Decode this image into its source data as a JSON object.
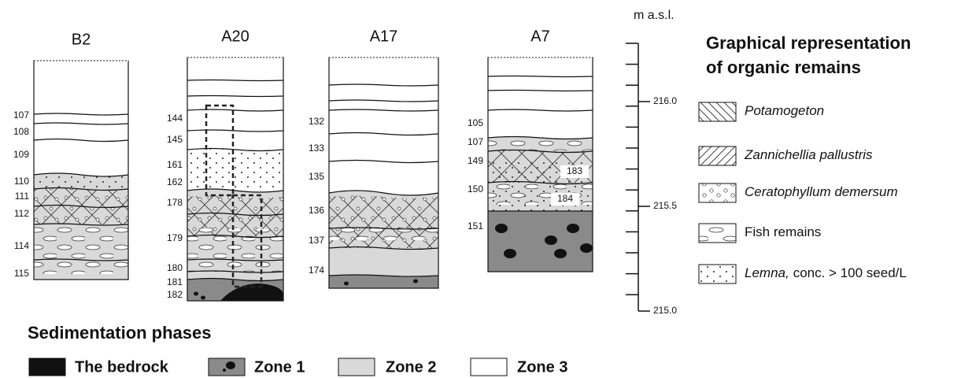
{
  "columns": [
    {
      "title": "B2",
      "labels": [
        "107",
        "108",
        "109",
        "110",
        "111",
        "112",
        "114",
        "115"
      ]
    },
    {
      "title": "A20",
      "labels": [
        "144",
        "145",
        "161",
        "162",
        "178",
        "179",
        "180",
        "181",
        "182"
      ]
    },
    {
      "title": "A17",
      "labels": [
        "132",
        "133",
        "135",
        "136",
        "137",
        "174"
      ]
    },
    {
      "title": "A7",
      "labels": [
        "105",
        "107",
        "149",
        "150",
        "151"
      ],
      "inner_labels": [
        "183",
        "184"
      ]
    }
  ],
  "scale": {
    "title": "m a.s.l.",
    "ticks": [
      "216.0",
      "215.5",
      "215.0"
    ]
  },
  "organic_legend": {
    "title_lines": [
      "Graphical representation",
      "of organic remains"
    ],
    "items": [
      {
        "text": "Potamogeton"
      },
      {
        "text": "Zannichellia pallustris"
      },
      {
        "text": "Ceratophyllum demersum"
      },
      {
        "text": "Fish remains"
      },
      {
        "italic": "Lemna,",
        "text": "conc. > 100 seed/L"
      }
    ]
  },
  "phases": {
    "title": "Sedimentation phases",
    "items": [
      "The bedrock",
      "Zone 1",
      "Zone 2",
      "Zone 3"
    ]
  }
}
